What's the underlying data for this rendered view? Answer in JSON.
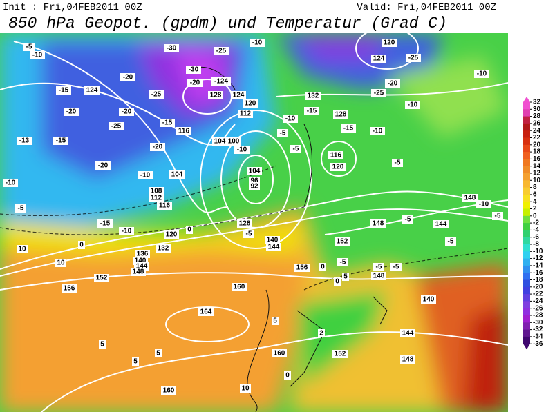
{
  "header": {
    "init": "Init : Fri,04FEB2011 00Z",
    "valid": "Valid: Fri,04FEB2011 00Z",
    "title": "850 hPa Geopot. (gpdm) und Temperatur (Grad C)"
  },
  "colorbar": {
    "ticks": [
      32,
      30,
      28,
      26,
      24,
      22,
      20,
      18,
      16,
      14,
      12,
      10,
      8,
      6,
      4,
      2,
      0,
      -2,
      -4,
      -6,
      -8,
      -10,
      -12,
      -14,
      -16,
      -18,
      -20,
      -22,
      -24,
      -26,
      -28,
      -30,
      -32,
      -34,
      -36
    ],
    "colors": [
      "#f050d0",
      "#e040b0",
      "#c02040",
      "#b01818",
      "#c82010",
      "#d83010",
      "#e84818",
      "#f06020",
      "#f07820",
      "#f08c28",
      "#f4a030",
      "#f8b830",
      "#f8cc30",
      "#f8e020",
      "#f0f000",
      "#c8f000",
      "#70e040",
      "#40d040",
      "#30d070",
      "#30d8a0",
      "#30e0d0",
      "#30d0f0",
      "#30b0f0",
      "#3090f0",
      "#3070f0",
      "#3050e0",
      "#4040e0",
      "#6040e0",
      "#8040e0",
      "#9030e0",
      "#a020d0",
      "#8020b0",
      "#601890",
      "#400870"
    ]
  },
  "map_labels": [
    "-5",
    "-10",
    "-15",
    "124",
    "-20",
    "-25",
    "-20",
    "-20",
    "-25",
    "-30",
    "-30",
    "-25",
    "-20",
    "-124",
    "128",
    "124",
    "120",
    "112",
    "-10",
    "120",
    "124",
    "-10",
    "-25",
    "-20",
    "-25",
    "132",
    "-15",
    "128",
    "-10",
    "-15",
    "-10",
    "-10",
    "-5",
    "-5",
    "116",
    "120",
    "-5",
    "104",
    "96",
    "92",
    "116",
    "104",
    "100",
    "-10",
    "-15",
    "-20",
    "-10",
    "104",
    "108",
    "112",
    "116",
    "-13",
    "-15",
    "-20",
    "-10",
    "-5",
    "-15",
    "-10",
    "120",
    "0",
    "128",
    "-5",
    "140",
    "144",
    "152",
    "148",
    "-5",
    "144",
    "148",
    "-10",
    "-5",
    "-5",
    "0",
    "10",
    "10",
    "132",
    "136",
    "140",
    "144",
    "148",
    "152",
    "156",
    "160",
    "156",
    "0",
    "-5",
    "164",
    "5",
    "5",
    "5",
    "160",
    "10",
    "160",
    "152",
    "144",
    "148",
    "140",
    "0",
    "-5",
    "-5",
    "148",
    "5",
    "2",
    "0",
    "5"
  ]
}
